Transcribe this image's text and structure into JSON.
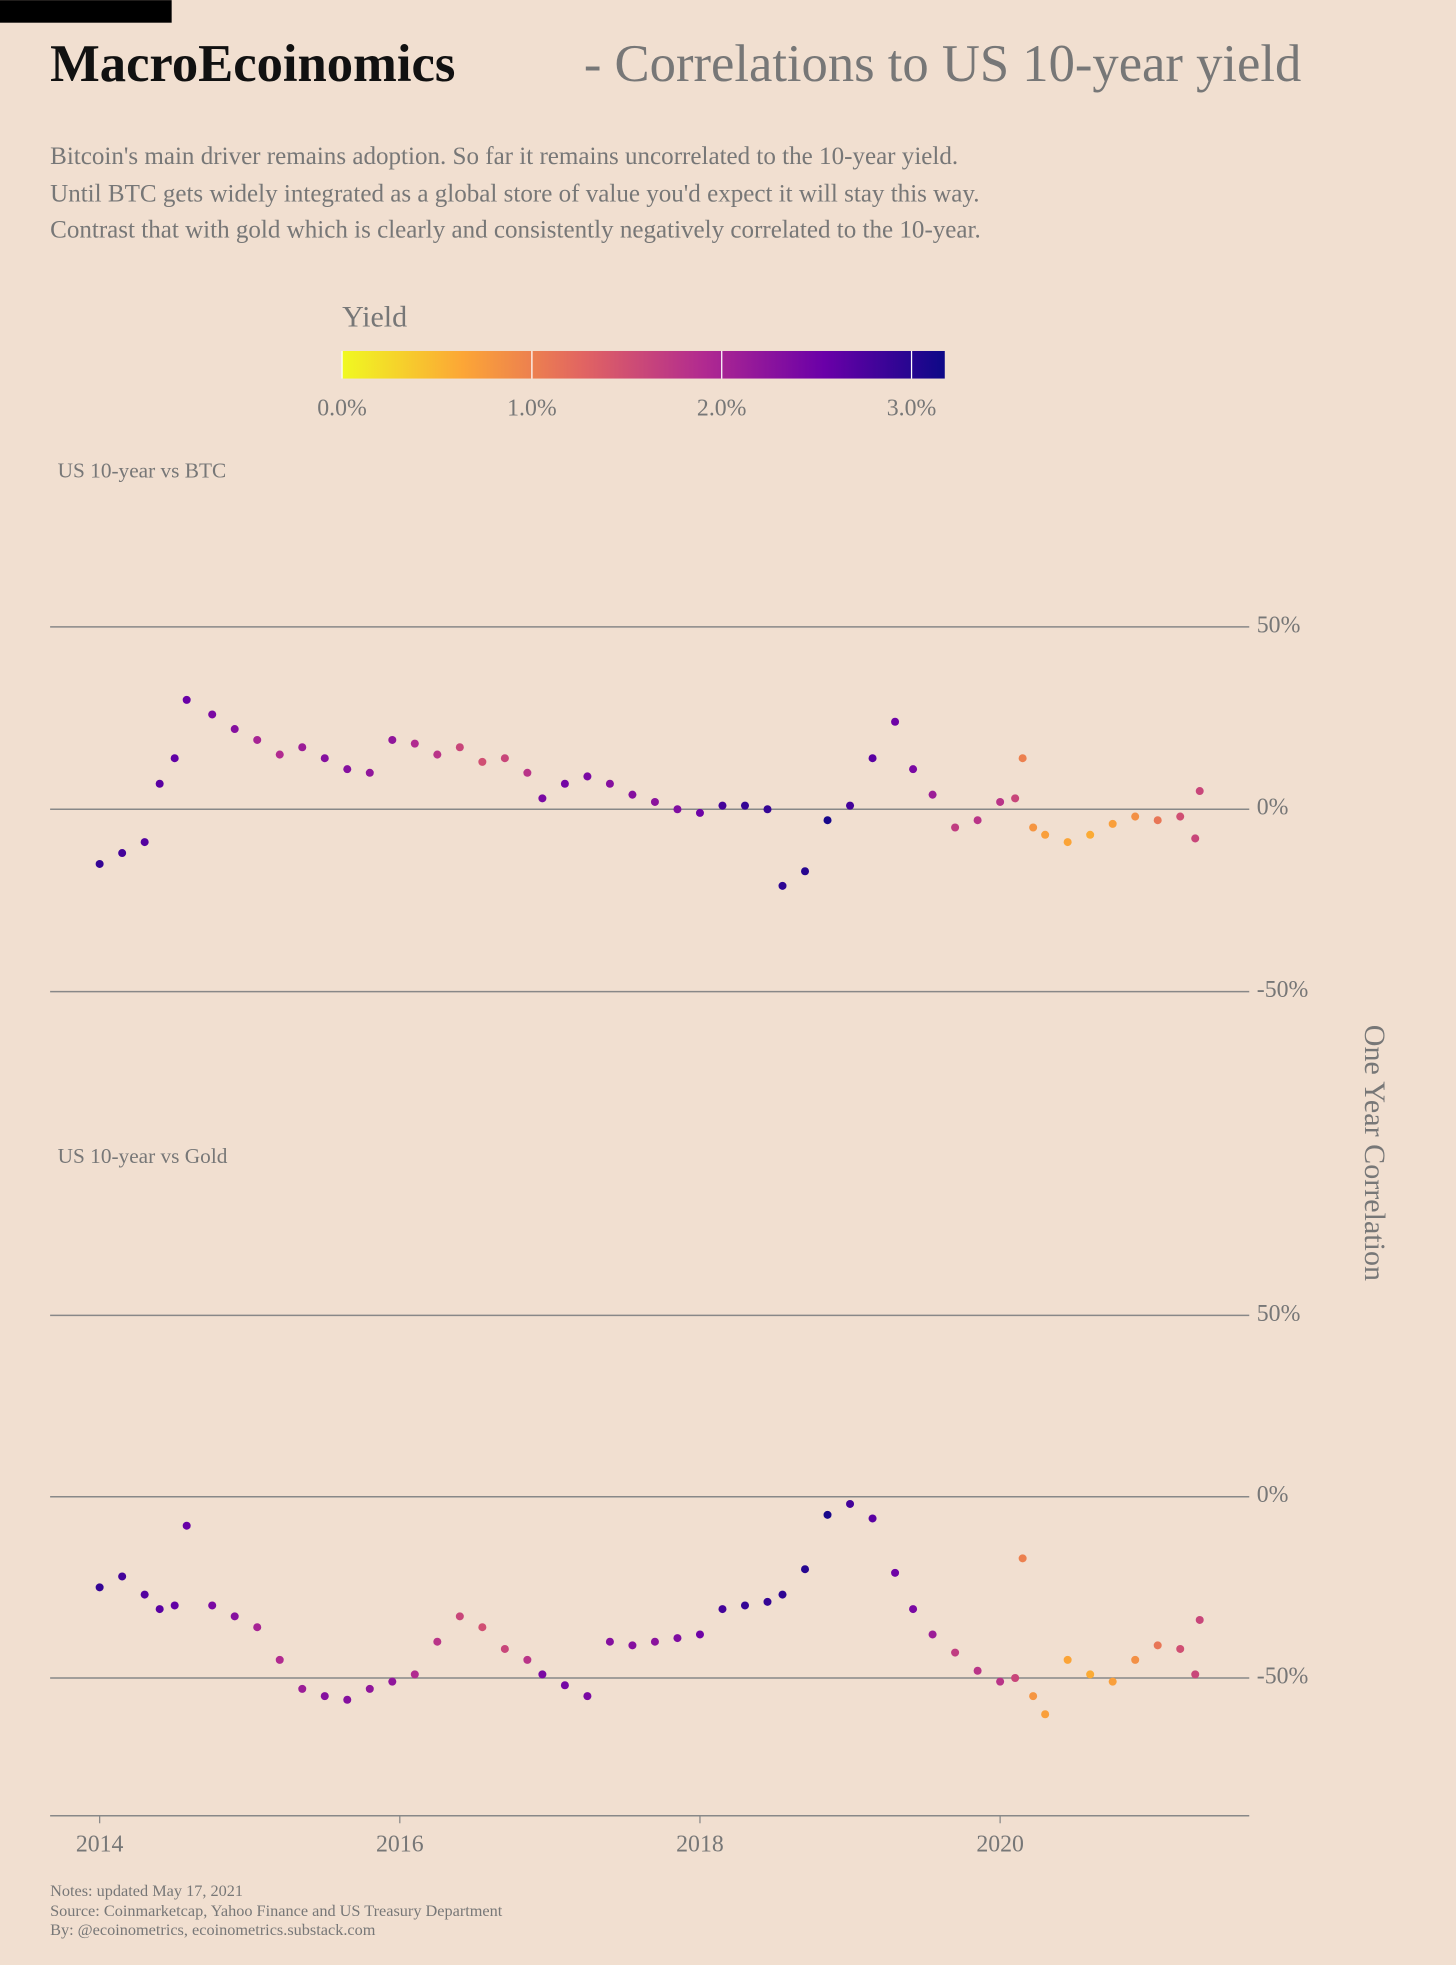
{
  "title": "MacroEcoinomics",
  "title_suffix": "- Correlations to US 10-year yield",
  "subtitle": [
    "Bitcoin's main driver remains adoption. So far it remains uncorrelated to the 10-year yield.",
    "Until BTC gets widely integrated as a global store of value you'd expect it will stay this way.",
    "Contrast that with gold which is clearly and consistently negatively correlated to the 10-year."
  ],
  "colorbar": {
    "title": "Yield",
    "lim": [
      0,
      3.175
    ],
    "colormap": [
      "#f0f921",
      "#fca636",
      "#e16462",
      "#b12a90",
      "#6a00a8",
      "#0d0887"
    ],
    "ticks": [
      {
        "value": 0,
        "label": "0.0%"
      },
      {
        "value": 1,
        "label": "1.0%"
      },
      {
        "value": 2,
        "label": "2.0%"
      },
      {
        "value": 3,
        "label": "3.0%"
      }
    ]
  },
  "y_label": "One Year Correlation",
  "notes": [
    "Notes: updated May 17, 2021",
    "Source: Coinmarketcap, Yahoo Finance and US Treasury Department",
    "By: @ecoinometrics, ecoinometrics.substack.com"
  ],
  "chart_data": [
    {
      "type": "scatter",
      "title": "US 10-year vs BTC",
      "x": [
        2014.0,
        2014.15,
        2014.3,
        2014.4,
        2014.5,
        2014.58,
        2014.75,
        2014.9,
        2015.05,
        2015.2,
        2015.35,
        2015.5,
        2015.65,
        2015.8,
        2015.95,
        2016.1,
        2016.25,
        2016.4,
        2016.55,
        2016.7,
        2016.85,
        2016.95,
        2017.1,
        2017.25,
        2017.4,
        2017.55,
        2017.7,
        2017.85,
        2018.0,
        2018.15,
        2018.3,
        2018.45,
        2018.55,
        2018.7,
        2018.85,
        2019.0,
        2019.15,
        2019.3,
        2019.42,
        2019.55,
        2019.7,
        2019.85,
        2020.0,
        2020.1,
        2020.15,
        2020.22,
        2020.3,
        2020.45,
        2020.6,
        2020.75,
        2020.9,
        2021.05,
        2021.2,
        2021.3,
        2021.33
      ],
      "values": [
        -15,
        -12,
        -9,
        7,
        14,
        30,
        26,
        22,
        19,
        15,
        17,
        14,
        11,
        10,
        19,
        18,
        15,
        17,
        13,
        14,
        10,
        3,
        7,
        9,
        7,
        4,
        2,
        0,
        -1,
        1,
        1,
        0,
        -21,
        -17,
        -3,
        1,
        14,
        24,
        11,
        4,
        -5,
        -3,
        2,
        3,
        14,
        -5,
        -7,
        -9,
        -7,
        -4,
        -2,
        -3,
        -2,
        -8,
        5
      ],
      "color_values": [
        2.9,
        2.8,
        2.7,
        2.65,
        2.6,
        2.55,
        2.4,
        2.3,
        2.0,
        1.9,
        2.1,
        2.3,
        2.3,
        2.2,
        2.2,
        1.9,
        1.8,
        1.6,
        1.5,
        1.6,
        1.8,
        2.4,
        2.45,
        2.4,
        2.3,
        2.3,
        2.25,
        2.35,
        2.5,
        2.8,
        2.9,
        2.9,
        2.95,
        3.0,
        3.1,
        2.8,
        2.65,
        2.5,
        2.4,
        2.1,
        1.7,
        1.8,
        1.8,
        1.6,
        1.0,
        0.8,
        0.7,
        0.65,
        0.6,
        0.7,
        0.85,
        1.1,
        1.5,
        1.6,
        1.6
      ],
      "xlim": [
        2013.67,
        2021.66
      ],
      "ylim": [
        -53,
        81
      ],
      "yticks": [
        {
          "value": 50,
          "label": "50%"
        },
        {
          "value": 0,
          "label": "0%"
        },
        {
          "value": -50,
          "label": "-50%"
        }
      ],
      "grid": true
    },
    {
      "type": "scatter",
      "title": "US 10-year vs Gold",
      "x": [
        2014.0,
        2014.15,
        2014.3,
        2014.4,
        2014.5,
        2014.58,
        2014.75,
        2014.9,
        2015.05,
        2015.2,
        2015.35,
        2015.5,
        2015.65,
        2015.8,
        2015.95,
        2016.1,
        2016.25,
        2016.4,
        2016.55,
        2016.7,
        2016.85,
        2016.95,
        2017.1,
        2017.25,
        2017.4,
        2017.55,
        2017.7,
        2017.85,
        2018.0,
        2018.15,
        2018.3,
        2018.45,
        2018.55,
        2018.7,
        2018.85,
        2019.0,
        2019.15,
        2019.3,
        2019.42,
        2019.55,
        2019.7,
        2019.85,
        2020.0,
        2020.1,
        2020.15,
        2020.22,
        2020.3,
        2020.45,
        2020.6,
        2020.75,
        2020.9,
        2021.05,
        2021.2,
        2021.3,
        2021.33
      ],
      "values": [
        -25,
        -22,
        -27,
        -31,
        -30,
        -8,
        -30,
        -33,
        -36,
        -45,
        -53,
        -55,
        -56,
        -53,
        -51,
        -49,
        -40,
        -33,
        -36,
        -42,
        -45,
        -49,
        -52,
        -55,
        -40,
        -41,
        -40,
        -39,
        -38,
        -31,
        -30,
        -29,
        -27,
        -20,
        -5,
        -2,
        -6,
        -21,
        -31,
        -38,
        -43,
        -48,
        -51,
        -50,
        -17,
        -55,
        -60,
        -45,
        -49,
        -51,
        -45,
        -41,
        -42,
        -49,
        -34
      ],
      "color_values": [
        2.9,
        2.8,
        2.7,
        2.65,
        2.6,
        2.55,
        2.4,
        2.3,
        2.0,
        1.9,
        2.1,
        2.3,
        2.3,
        2.2,
        2.2,
        1.9,
        1.8,
        1.6,
        1.5,
        1.6,
        1.8,
        2.4,
        2.45,
        2.4,
        2.3,
        2.3,
        2.25,
        2.35,
        2.5,
        2.8,
        2.9,
        2.9,
        2.95,
        3.0,
        3.1,
        2.8,
        2.65,
        2.5,
        2.4,
        2.1,
        1.7,
        1.8,
        1.8,
        1.6,
        1.0,
        0.8,
        0.7,
        0.65,
        0.6,
        0.7,
        0.85,
        1.1,
        1.5,
        1.6,
        1.6
      ],
      "xlim": [
        2013.67,
        2021.66
      ],
      "ylim": [
        -88,
        81
      ],
      "xticks": [
        2014,
        2016,
        2018,
        2020
      ],
      "yticks": [
        {
          "value": 50,
          "label": "50%"
        },
        {
          "value": 0,
          "label": "0%"
        },
        {
          "value": -50,
          "label": "-50%"
        }
      ],
      "grid": true
    }
  ]
}
